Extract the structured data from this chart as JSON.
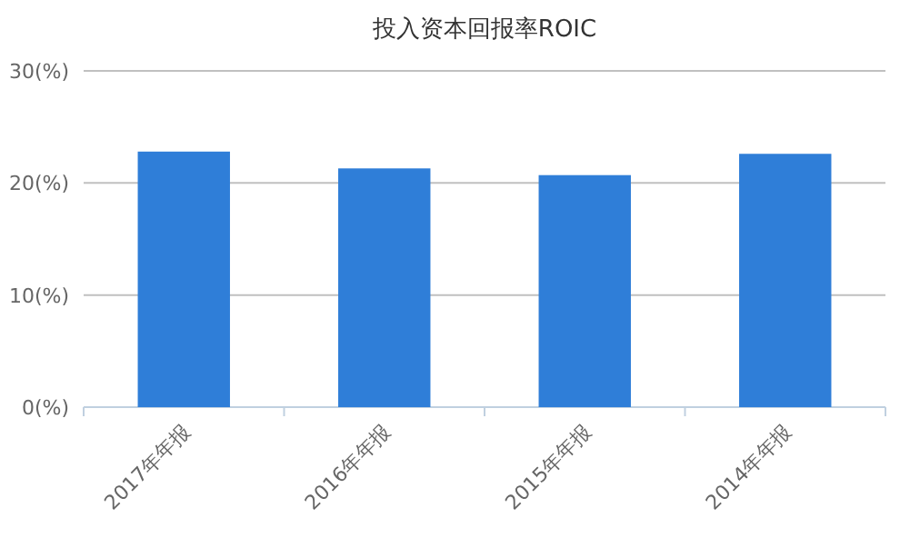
{
  "chart_data": {
    "type": "bar",
    "title": "投入资本回报率ROIC",
    "categories": [
      "2017年年报",
      "2016年年报",
      "2015年年报",
      "2014年年报"
    ],
    "values": [
      22.8,
      21.3,
      20.7,
      22.6
    ],
    "color": "#2f7ed8",
    "ylim": [
      0,
      30
    ],
    "yticks": [
      {
        "value": 0,
        "label": "0(%)"
      },
      {
        "value": 10,
        "label": "10(%)"
      },
      {
        "value": 20,
        "label": "20(%)"
      },
      {
        "value": 30,
        "label": "30(%)"
      }
    ],
    "grid": "y"
  }
}
